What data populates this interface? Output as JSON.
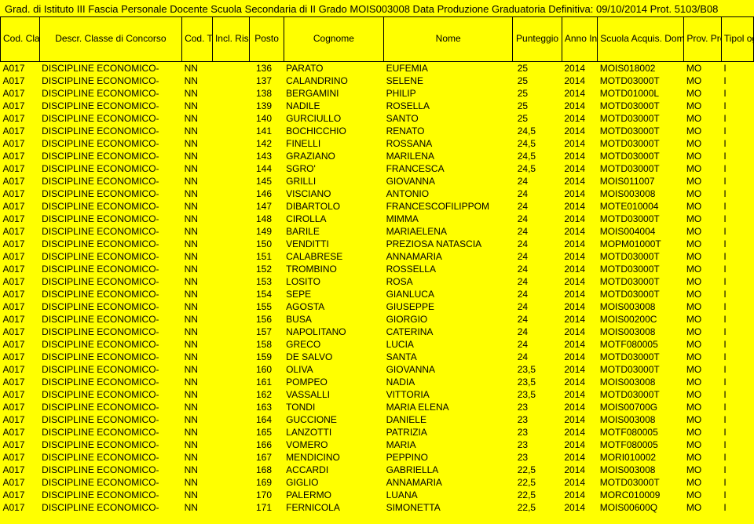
{
  "title": "Grad. di Istituto III Fascia Personale Docente Scuola Secondaria di II Grado MOIS003008 Data Produzione Graduatoria Definitiva: 09/10/2014 Prot. 5103/B08",
  "headers": {
    "cod": "Cod. Classe di Concors",
    "descr": "Descr. Classe di Concorso",
    "tipo": "Cod. Tipo Posto",
    "incl": "Incl. Ris",
    "posto": "Posto",
    "cognome": "Cognome",
    "nome": "Nome",
    "punteggio": "Punteggio",
    "anno": "Anno Ins. Grad.",
    "scuola": "Scuola Acquis. Domanda",
    "prov": "Prov. Presen t. Doma",
    "tipologia": "Tipol ogia Grad uatori"
  },
  "rows": [
    {
      "cod": "A017",
      "descr": "DISCIPLINE ECONOMICO-",
      "tipo": "NN",
      "incl": "",
      "posto": "136",
      "cog": "PARATO",
      "nome": "EUFEMIA",
      "punt": "25",
      "anno": "2014",
      "scuo": "MOIS018002",
      "prov": "MO",
      "tg": "I"
    },
    {
      "cod": "A017",
      "descr": "DISCIPLINE ECONOMICO-",
      "tipo": "NN",
      "incl": "",
      "posto": "137",
      "cog": "CALANDRINO",
      "nome": "SELENE",
      "punt": "25",
      "anno": "2014",
      "scuo": "MOTD03000T",
      "prov": "MO",
      "tg": "I"
    },
    {
      "cod": "A017",
      "descr": "DISCIPLINE ECONOMICO-",
      "tipo": "NN",
      "incl": "",
      "posto": "138",
      "cog": "BERGAMINI",
      "nome": "PHILIP",
      "punt": "25",
      "anno": "2014",
      "scuo": "MOTD01000L",
      "prov": "MO",
      "tg": "I"
    },
    {
      "cod": "A017",
      "descr": "DISCIPLINE ECONOMICO-",
      "tipo": "NN",
      "incl": "",
      "posto": "139",
      "cog": "NADILE",
      "nome": "ROSELLA",
      "punt": "25",
      "anno": "2014",
      "scuo": "MOTD03000T",
      "prov": "MO",
      "tg": "I"
    },
    {
      "cod": "A017",
      "descr": "DISCIPLINE ECONOMICO-",
      "tipo": "NN",
      "incl": "",
      "posto": "140",
      "cog": "GURCIULLO",
      "nome": "SANTO",
      "punt": "25",
      "anno": "2014",
      "scuo": "MOTD03000T",
      "prov": "MO",
      "tg": "I"
    },
    {
      "cod": "A017",
      "descr": "DISCIPLINE ECONOMICO-",
      "tipo": "NN",
      "incl": "",
      "posto": "141",
      "cog": "BOCHICCHIO",
      "nome": "RENATO",
      "punt": "24,5",
      "anno": "2014",
      "scuo": "MOTD03000T",
      "prov": "MO",
      "tg": "I"
    },
    {
      "cod": "A017",
      "descr": "DISCIPLINE ECONOMICO-",
      "tipo": "NN",
      "incl": "",
      "posto": "142",
      "cog": "FINELLI",
      "nome": "ROSSANA",
      "punt": "24,5",
      "anno": "2014",
      "scuo": "MOTD03000T",
      "prov": "MO",
      "tg": "I"
    },
    {
      "cod": "A017",
      "descr": "DISCIPLINE ECONOMICO-",
      "tipo": "NN",
      "incl": "",
      "posto": "143",
      "cog": "GRAZIANO",
      "nome": "MARILENA",
      "punt": "24,5",
      "anno": "2014",
      "scuo": "MOTD03000T",
      "prov": "MO",
      "tg": "I"
    },
    {
      "cod": "A017",
      "descr": "DISCIPLINE ECONOMICO-",
      "tipo": "NN",
      "incl": "",
      "posto": "144",
      "cog": "SGRO'",
      "nome": "FRANCESCA",
      "punt": "24,5",
      "anno": "2014",
      "scuo": "MOTD03000T",
      "prov": "MO",
      "tg": "I"
    },
    {
      "cod": "A017",
      "descr": "DISCIPLINE ECONOMICO-",
      "tipo": "NN",
      "incl": "",
      "posto": "145",
      "cog": "GRILLI",
      "nome": "GIOVANNA",
      "punt": "24",
      "anno": "2014",
      "scuo": "MOIS011007",
      "prov": "MO",
      "tg": "I"
    },
    {
      "cod": "A017",
      "descr": "DISCIPLINE ECONOMICO-",
      "tipo": "NN",
      "incl": "",
      "posto": "146",
      "cog": "VISCIANO",
      "nome": "ANTONIO",
      "punt": "24",
      "anno": "2014",
      "scuo": "MOIS003008",
      "prov": "MO",
      "tg": "I"
    },
    {
      "cod": "A017",
      "descr": "DISCIPLINE ECONOMICO-",
      "tipo": "NN",
      "incl": "",
      "posto": "147",
      "cog": "DIBARTOLO",
      "nome": "FRANCESCOFILIPPOM",
      "punt": "24",
      "anno": "2014",
      "scuo": "MOTE010004",
      "prov": "MO",
      "tg": "I"
    },
    {
      "cod": "A017",
      "descr": "DISCIPLINE ECONOMICO-",
      "tipo": "NN",
      "incl": "",
      "posto": "148",
      "cog": "CIROLLA",
      "nome": "MIMMA",
      "punt": "24",
      "anno": "2014",
      "scuo": "MOTD03000T",
      "prov": "MO",
      "tg": "I"
    },
    {
      "cod": "A017",
      "descr": "DISCIPLINE ECONOMICO-",
      "tipo": "NN",
      "incl": "",
      "posto": "149",
      "cog": "BARILE",
      "nome": "MARIAELENA",
      "punt": "24",
      "anno": "2014",
      "scuo": "MOIS004004",
      "prov": "MO",
      "tg": "I"
    },
    {
      "cod": "A017",
      "descr": "DISCIPLINE ECONOMICO-",
      "tipo": "NN",
      "incl": "",
      "posto": "150",
      "cog": "VENDITTI",
      "nome": "PREZIOSA NATASCIA",
      "punt": "24",
      "anno": "2014",
      "scuo": "MOPM01000T",
      "prov": "MO",
      "tg": "I"
    },
    {
      "cod": "A017",
      "descr": "DISCIPLINE ECONOMICO-",
      "tipo": "NN",
      "incl": "",
      "posto": "151",
      "cog": "CALABRESE",
      "nome": "ANNAMARIA",
      "punt": "24",
      "anno": "2014",
      "scuo": "MOTD03000T",
      "prov": "MO",
      "tg": "I"
    },
    {
      "cod": "A017",
      "descr": "DISCIPLINE ECONOMICO-",
      "tipo": "NN",
      "incl": "",
      "posto": "152",
      "cog": "TROMBINO",
      "nome": "ROSSELLA",
      "punt": "24",
      "anno": "2014",
      "scuo": "MOTD03000T",
      "prov": "MO",
      "tg": "I"
    },
    {
      "cod": "A017",
      "descr": "DISCIPLINE ECONOMICO-",
      "tipo": "NN",
      "incl": "",
      "posto": "153",
      "cog": "LOSITO",
      "nome": "ROSA",
      "punt": "24",
      "anno": "2014",
      "scuo": "MOTD03000T",
      "prov": "MO",
      "tg": "I"
    },
    {
      "cod": "A017",
      "descr": "DISCIPLINE ECONOMICO-",
      "tipo": "NN",
      "incl": "",
      "posto": "154",
      "cog": "SEPE",
      "nome": "GIANLUCA",
      "punt": "24",
      "anno": "2014",
      "scuo": "MOTD03000T",
      "prov": "MO",
      "tg": "I"
    },
    {
      "cod": "A017",
      "descr": "DISCIPLINE ECONOMICO-",
      "tipo": "NN",
      "incl": "",
      "posto": "155",
      "cog": "AGOSTA",
      "nome": "GIUSEPPE",
      "punt": "24",
      "anno": "2014",
      "scuo": "MOIS003008",
      "prov": "MO",
      "tg": "I"
    },
    {
      "cod": "A017",
      "descr": "DISCIPLINE ECONOMICO-",
      "tipo": "NN",
      "incl": "",
      "posto": "156",
      "cog": "BUSA",
      "nome": "GIORGIO",
      "punt": "24",
      "anno": "2014",
      "scuo": "MOIS00200C",
      "prov": "MO",
      "tg": "I"
    },
    {
      "cod": "A017",
      "descr": "DISCIPLINE ECONOMICO-",
      "tipo": "NN",
      "incl": "",
      "posto": "157",
      "cog": "NAPOLITANO",
      "nome": "CATERINA",
      "punt": "24",
      "anno": "2014",
      "scuo": "MOIS003008",
      "prov": "MO",
      "tg": "I"
    },
    {
      "cod": "A017",
      "descr": "DISCIPLINE ECONOMICO-",
      "tipo": "NN",
      "incl": "",
      "posto": "158",
      "cog": "GRECO",
      "nome": "LUCIA",
      "punt": "24",
      "anno": "2014",
      "scuo": "MOTF080005",
      "prov": "MO",
      "tg": "I"
    },
    {
      "cod": "A017",
      "descr": "DISCIPLINE ECONOMICO-",
      "tipo": "NN",
      "incl": "",
      "posto": "159",
      "cog": "DE SALVO",
      "nome": "SANTA",
      "punt": "24",
      "anno": "2014",
      "scuo": "MOTD03000T",
      "prov": "MO",
      "tg": "I"
    },
    {
      "cod": "A017",
      "descr": "DISCIPLINE ECONOMICO-",
      "tipo": "NN",
      "incl": "",
      "posto": "160",
      "cog": "OLIVA",
      "nome": "GIOVANNA",
      "punt": "23,5",
      "anno": "2014",
      "scuo": "MOTD03000T",
      "prov": "MO",
      "tg": "I"
    },
    {
      "cod": "A017",
      "descr": "DISCIPLINE ECONOMICO-",
      "tipo": "NN",
      "incl": "",
      "posto": "161",
      "cog": "POMPEO",
      "nome": "NADIA",
      "punt": "23,5",
      "anno": "2014",
      "scuo": "MOIS003008",
      "prov": "MO",
      "tg": "I"
    },
    {
      "cod": "A017",
      "descr": "DISCIPLINE ECONOMICO-",
      "tipo": "NN",
      "incl": "",
      "posto": "162",
      "cog": "VASSALLI",
      "nome": "VITTORIA",
      "punt": "23,5",
      "anno": "2014",
      "scuo": "MOTD03000T",
      "prov": "MO",
      "tg": "I"
    },
    {
      "cod": "A017",
      "descr": "DISCIPLINE ECONOMICO-",
      "tipo": "NN",
      "incl": "",
      "posto": "163",
      "cog": "TONDI",
      "nome": "MARIA ELENA",
      "punt": "23",
      "anno": "2014",
      "scuo": "MOIS00700G",
      "prov": "MO",
      "tg": "I"
    },
    {
      "cod": "A017",
      "descr": "DISCIPLINE ECONOMICO-",
      "tipo": "NN",
      "incl": "",
      "posto": "164",
      "cog": "GUCCIONE",
      "nome": "DANIELE",
      "punt": "23",
      "anno": "2014",
      "scuo": "MOIS003008",
      "prov": "MO",
      "tg": "I"
    },
    {
      "cod": "A017",
      "descr": "DISCIPLINE ECONOMICO-",
      "tipo": "NN",
      "incl": "",
      "posto": "165",
      "cog": "LANZOTTI",
      "nome": "PATRIZIA",
      "punt": "23",
      "anno": "2014",
      "scuo": "MOTF080005",
      "prov": "MO",
      "tg": "I"
    },
    {
      "cod": "A017",
      "descr": "DISCIPLINE ECONOMICO-",
      "tipo": "NN",
      "incl": "",
      "posto": "166",
      "cog": "VOMERO",
      "nome": "MARIA",
      "punt": "23",
      "anno": "2014",
      "scuo": "MOTF080005",
      "prov": "MO",
      "tg": "I"
    },
    {
      "cod": "A017",
      "descr": "DISCIPLINE ECONOMICO-",
      "tipo": "NN",
      "incl": "",
      "posto": "167",
      "cog": "MENDICINO",
      "nome": "PEPPINO",
      "punt": "23",
      "anno": "2014",
      "scuo": "MORI010002",
      "prov": "MO",
      "tg": "I"
    },
    {
      "cod": "A017",
      "descr": "DISCIPLINE ECONOMICO-",
      "tipo": "NN",
      "incl": "",
      "posto": "168",
      "cog": "ACCARDI",
      "nome": "GABRIELLA",
      "punt": "22,5",
      "anno": "2014",
      "scuo": "MOIS003008",
      "prov": "MO",
      "tg": "I"
    },
    {
      "cod": "A017",
      "descr": "DISCIPLINE ECONOMICO-",
      "tipo": "NN",
      "incl": "",
      "posto": "169",
      "cog": "GIGLIO",
      "nome": "ANNAMARIA",
      "punt": "22,5",
      "anno": "2014",
      "scuo": "MOTD03000T",
      "prov": "MO",
      "tg": "I"
    },
    {
      "cod": "A017",
      "descr": "DISCIPLINE ECONOMICO-",
      "tipo": "NN",
      "incl": "",
      "posto": "170",
      "cog": "PALERMO",
      "nome": "LUANA",
      "punt": "22,5",
      "anno": "2014",
      "scuo": "MORC010009",
      "prov": "MO",
      "tg": "I"
    },
    {
      "cod": "A017",
      "descr": "DISCIPLINE ECONOMICO-",
      "tipo": "NN",
      "incl": "",
      "posto": "171",
      "cog": "FERNICOLA",
      "nome": "SIMONETTA",
      "punt": "22,5",
      "anno": "2014",
      "scuo": "MOIS00600Q",
      "prov": "MO",
      "tg": "I"
    }
  ]
}
